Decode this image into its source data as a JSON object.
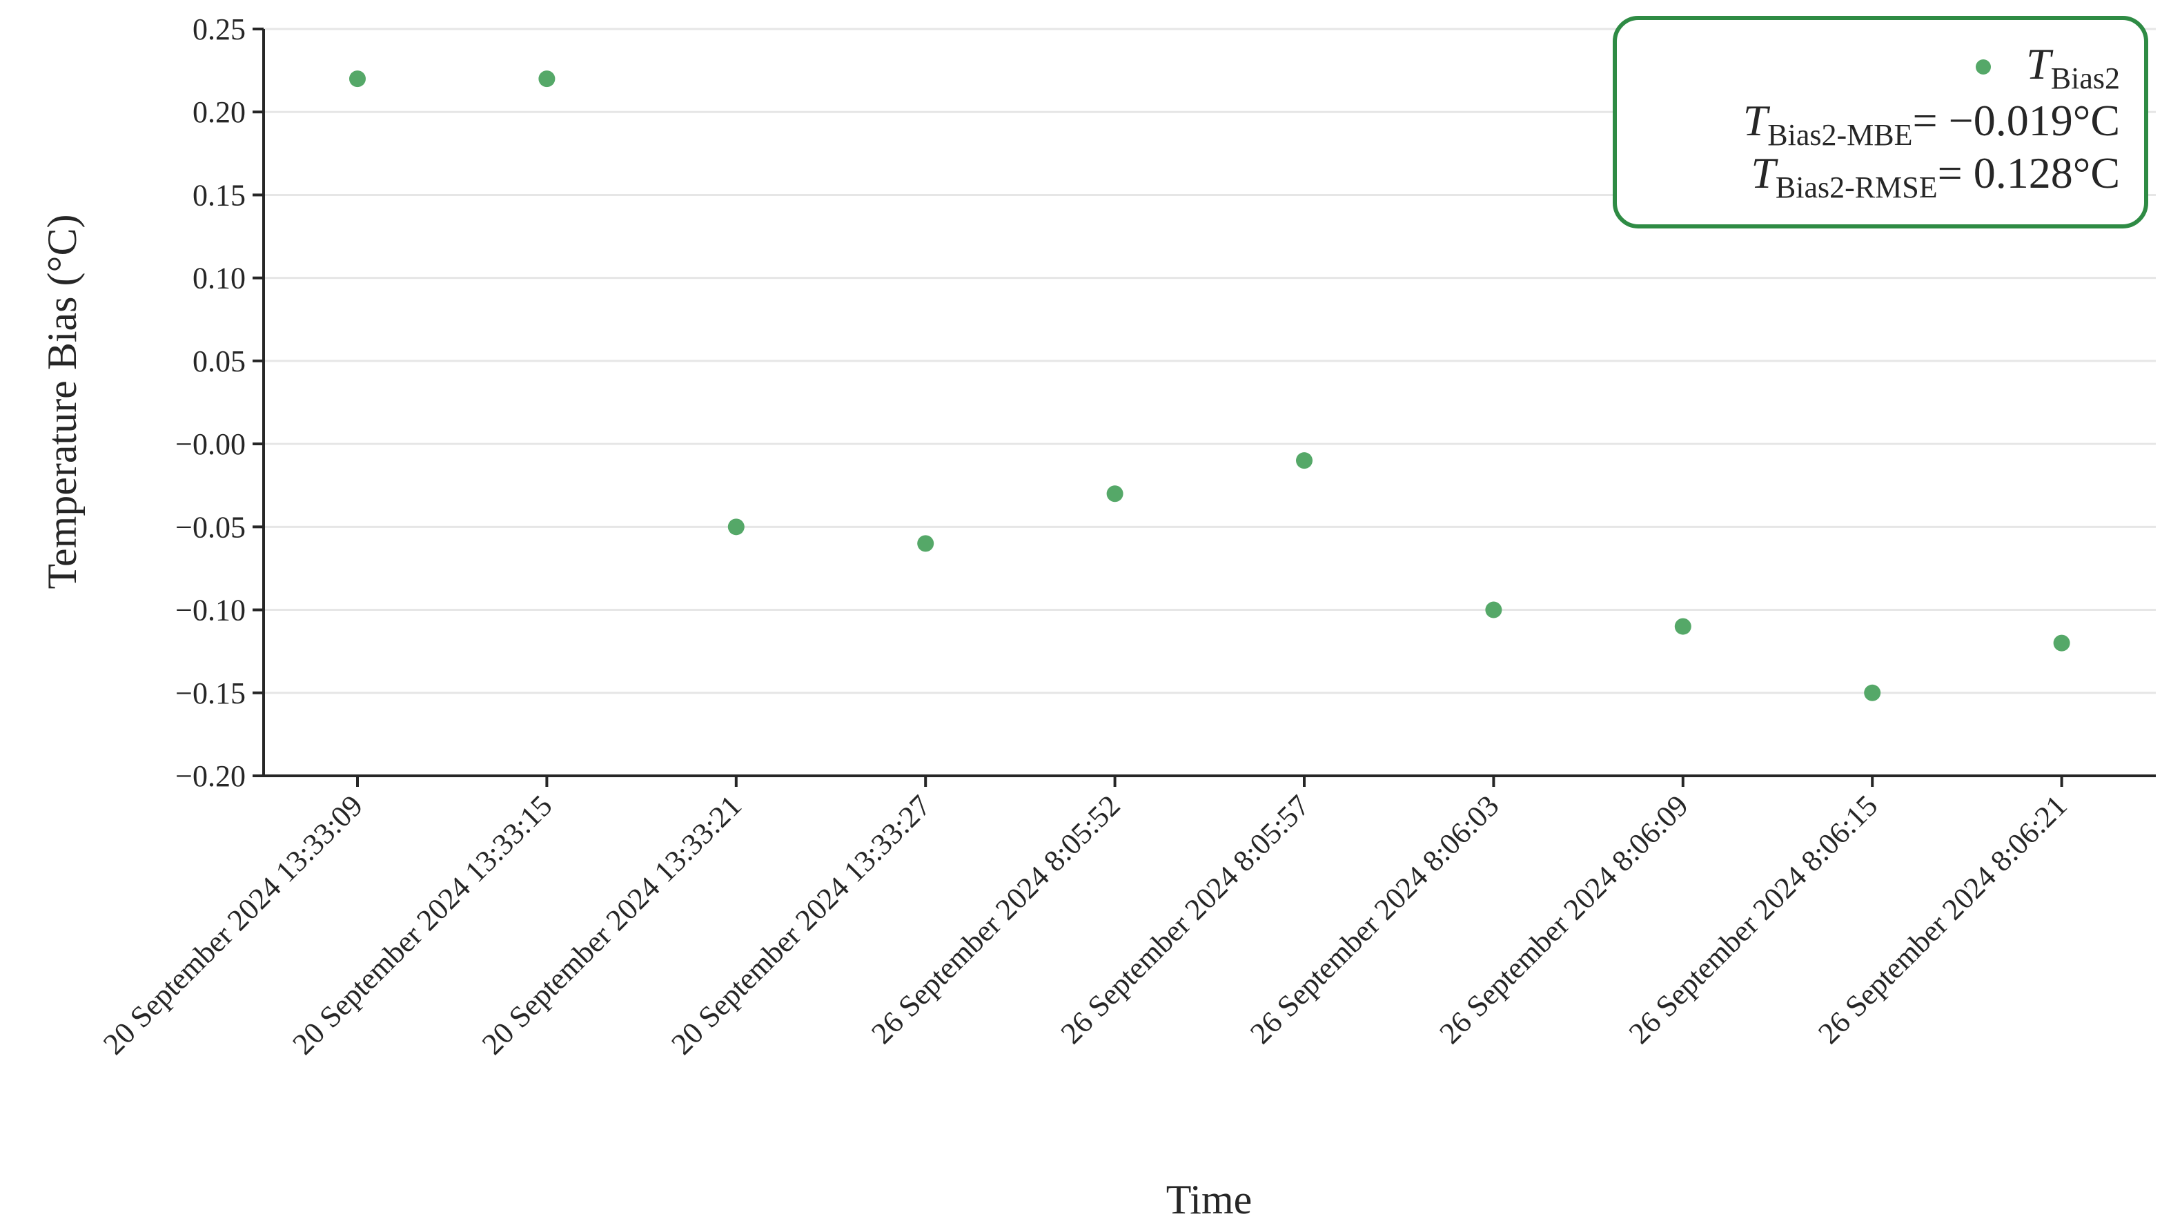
{
  "chart_data": {
    "type": "scatter",
    "xlabel": "Time",
    "ylabel": "Temperature Bias (°C)",
    "categories": [
      "20 September 2024 13:33:09",
      "20 September 2024 13:33:15",
      "20 September 2024 13:33:21",
      "20 September 2024 13:33:27",
      "26 September 2024 8:05:52",
      "26 September 2024 8:05:57",
      "26 September 2024 8:06:03",
      "26 September 2024 8:06:09",
      "26 September 2024 8:06:15",
      "26 September 2024 8:06:21"
    ],
    "series": [
      {
        "name": "T_Bias2",
        "color": "#55a868",
        "values": [
          0.22,
          0.22,
          -0.05,
          -0.06,
          -0.03,
          -0.01,
          -0.1,
          -0.11,
          -0.15,
          -0.12
        ]
      }
    ],
    "ylim": [
      -0.2,
      0.25
    ],
    "yticks": [
      "0.25",
      "0.20",
      "0.15",
      "0.10",
      "0.05",
      "−0.00",
      "−0.05",
      "−0.10",
      "−0.15",
      "−0.20"
    ],
    "ytick_values": [
      0.25,
      0.2,
      0.15,
      0.1,
      0.05,
      0.0,
      -0.05,
      -0.1,
      -0.15,
      -0.2
    ],
    "grid": "horizontal",
    "legend": {
      "placement": "top-right",
      "border_color": "#2e8b44",
      "entries": [
        {
          "main": "T",
          "sub": "Bias2",
          "rest": ""
        },
        {
          "main": "T",
          "sub": "Bias2-MBE",
          "rest": "= −0.019°C"
        },
        {
          "main": "T",
          "sub": "Bias2-RMSE",
          "rest": "= 0.128°C"
        }
      ]
    }
  }
}
